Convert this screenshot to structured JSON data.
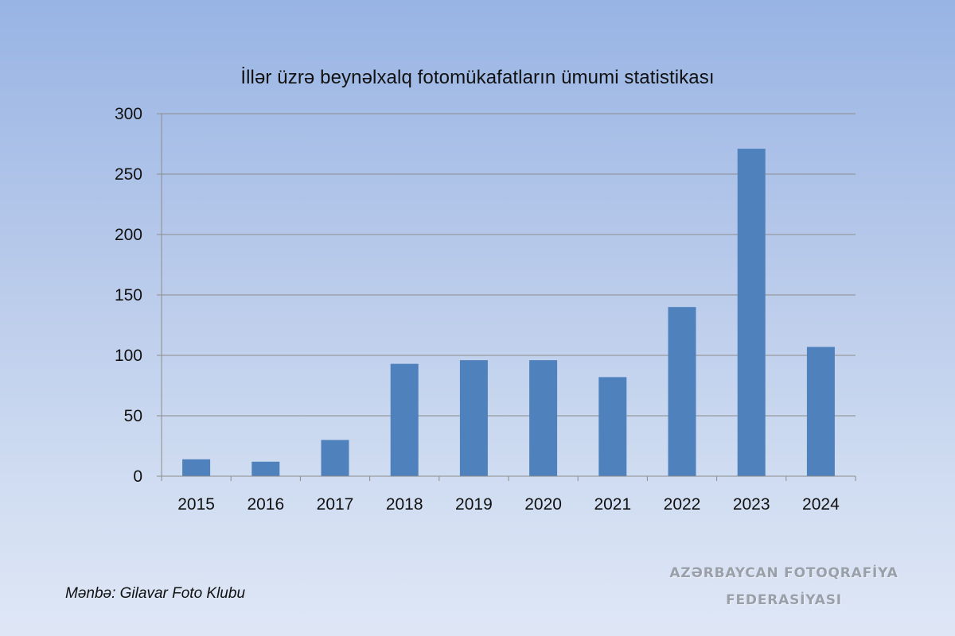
{
  "chart_data": {
    "type": "bar",
    "title": "İllər üzrə beynəlxalq fotomükafatların ümumi statistikası",
    "xlabel": "",
    "ylabel": "",
    "categories": [
      "2015",
      "2016",
      "2017",
      "2018",
      "2019",
      "2020",
      "2021",
      "2022",
      "2023",
      "2024"
    ],
    "values": [
      14,
      12,
      30,
      93,
      96,
      96,
      82,
      140,
      271,
      107
    ],
    "ylim": [
      0,
      300
    ],
    "yticks": [
      0,
      50,
      100,
      150,
      200,
      250,
      300
    ],
    "grid": true,
    "legend": "none",
    "bar_color": "#4f81bd"
  },
  "source_note": "Mənbə: Gilavar Foto Klubu",
  "watermark": {
    "line1": "AZƏRBAYCAN FOTOQRAFİYA",
    "line2": "FEDERASİYASI"
  }
}
